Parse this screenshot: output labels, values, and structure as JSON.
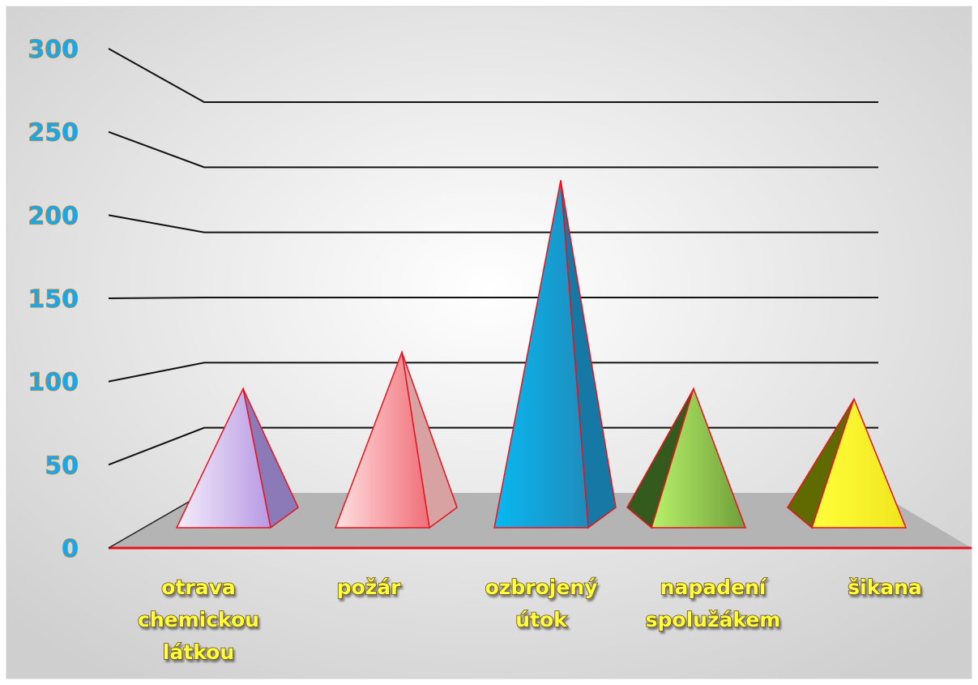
{
  "chart_data": {
    "type": "bar",
    "style": "3d-pyramid",
    "categories": [
      [
        "otrava",
        "chemickou",
        "látkou"
      ],
      [
        "požár"
      ],
      [
        "ozbrojený",
        "útok"
      ],
      [
        "napadení",
        "spolužákem"
      ],
      [
        "šikana"
      ]
    ],
    "values": [
      80,
      108,
      240,
      80,
      72
    ],
    "ylim": [
      0,
      300
    ],
    "yticks": [
      "0",
      "50",
      "100",
      "150",
      "200",
      "250",
      "300"
    ],
    "title": "",
    "xlabel": "",
    "ylabel": "",
    "grid": true,
    "legend": "none",
    "colors": {
      "background_center": "#ffffff",
      "background_edge": "#cfcfcf",
      "floor": "#b4b4b4",
      "baseline": "#e8121e",
      "gridline": "#111111",
      "outline": "#e8121e",
      "tick_fill": "#1aa7e6",
      "tick_stroke": "#ff8a1f",
      "label_fill": "#ffff3a",
      "label_stroke": "#6b4a12",
      "bars": [
        {
          "light": "#f4eefa",
          "dark": "#b799e4",
          "side": "#8c7ab8"
        },
        {
          "light": "#ffe0e0",
          "dark": "#f06e78",
          "side": "#d9a2a2"
        },
        {
          "light": "#08b8f0",
          "dark": "#1f8cbd",
          "side": "#1678a4"
        },
        {
          "light": "#b8f26a",
          "dark": "#6f9e3a",
          "side": "#355a1d"
        },
        {
          "light": "#ffff3a",
          "dark": "#f0e51e",
          "side": "#5f6a00"
        }
      ]
    }
  }
}
